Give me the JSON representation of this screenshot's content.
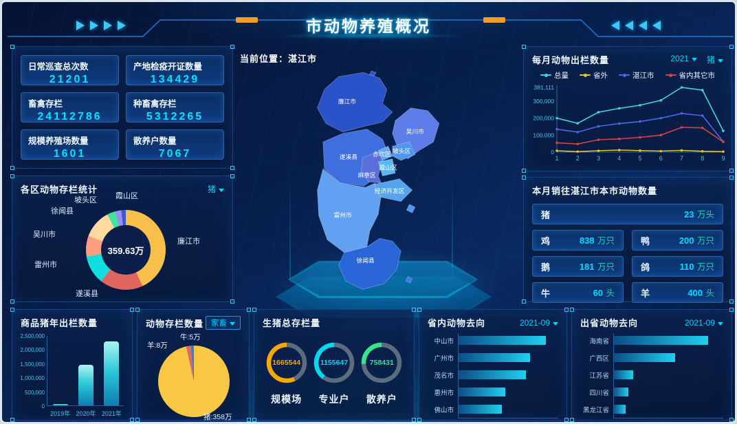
{
  "header": {
    "title": "市动物养殖概况"
  },
  "map": {
    "location": "当前位置：湛江市",
    "regions": [
      "廉江市",
      "吴川市",
      "遂溪县",
      "赤坎区",
      "坡头区",
      "霞山区",
      "麻章区",
      "经济开发区",
      "雷州市",
      "徐闻县"
    ]
  },
  "stats": {
    "cards": [
      {
        "label": "日常巡查总次数",
        "value": "21201"
      },
      {
        "label": "产地检疫开证数量",
        "value": "134429"
      },
      {
        "label": "畜禽存栏",
        "value": "24112786"
      },
      {
        "label": "种畜禽存栏",
        "value": "5312265"
      },
      {
        "label": "规模养殖场数量",
        "value": "1601"
      },
      {
        "label": "散养户数量",
        "value": "7067"
      }
    ]
  },
  "panels": {
    "district_donut": {
      "title": "各区动物存栏统计",
      "dropdown": "猪"
    },
    "monthly_line": {
      "title": "每月动物出栏数量",
      "year_dropdown": "2021",
      "animal_dropdown": "猪"
    },
    "sales": {
      "title": "本月销往湛江市本市动物数量"
    },
    "yearly_bar": {
      "title": "商品猪年出栏数量"
    },
    "stock_pie": {
      "title": "动物存栏数量",
      "dropdown": "家畜"
    },
    "gauges": {
      "title": "生猪总存栏量"
    },
    "inside": {
      "title": "省内动物去向",
      "dropdown": "2021-09"
    },
    "outside": {
      "title": "出省动物去向",
      "dropdown": "2021-09"
    }
  },
  "sales": {
    "rows": [
      {
        "animal": "猪",
        "value": "23",
        "unit": "万头"
      },
      {
        "animal": "鸡",
        "value": "838",
        "unit": "万只"
      },
      {
        "animal": "鸭",
        "value": "200",
        "unit": "万只"
      },
      {
        "animal": "鹅",
        "value": "181",
        "unit": "万只"
      },
      {
        "animal": "鸽",
        "value": "110",
        "unit": "万只"
      },
      {
        "animal": "牛",
        "value": "60",
        "unit": "头"
      },
      {
        "animal": "羊",
        "value": "400",
        "unit": "头"
      }
    ]
  },
  "chart_data": [
    {
      "id": "monthly_line",
      "type": "line",
      "title": "每月动物出栏数量",
      "x": [
        "1",
        "2",
        "3",
        "4",
        "5",
        "6",
        "7",
        "8",
        "9"
      ],
      "ylim": [
        0,
        381111
      ],
      "legend_position": "top",
      "grid": false,
      "y_ticks": [
        {
          "label": "0",
          "value": 0
        },
        {
          "label": "100,000",
          "value": 100000
        },
        {
          "label": "200,000",
          "value": 200000
        },
        {
          "label": "300,000",
          "value": 300000
        },
        {
          "label": "381,111",
          "value": 381111
        }
      ],
      "series": [
        {
          "name": "总量",
          "color": "#3fd4e4",
          "values": [
            200000,
            170000,
            235000,
            258000,
            276000,
            305000,
            381111,
            365000,
            125000
          ]
        },
        {
          "name": "省外",
          "color": "#e6c619",
          "values": [
            8000,
            3000,
            8000,
            12000,
            9000,
            6000,
            10000,
            5000,
            3000
          ]
        },
        {
          "name": "湛江市",
          "color": "#4a67e8",
          "values": [
            135000,
            118000,
            152000,
            168000,
            180000,
            200000,
            228000,
            215000,
            62000
          ]
        },
        {
          "name": "省内其它市",
          "color": "#d94040",
          "values": [
            55000,
            48000,
            73000,
            78000,
            87000,
            100000,
            146000,
            143000,
            60000
          ]
        }
      ]
    },
    {
      "id": "district_donut",
      "type": "pie",
      "donut": true,
      "title": "各区动物存栏统计",
      "center_label": "359.63万",
      "unit": "万",
      "slices": [
        {
          "name": "廉江市",
          "value": 155,
          "color": "#f8c04a"
        },
        {
          "name": "遂溪县",
          "value": 63,
          "color": "#e0655f"
        },
        {
          "name": "雷州市",
          "value": 42,
          "color": "#10dede"
        },
        {
          "name": "吴川市",
          "value": 30,
          "color": "#ff9f7f"
        },
        {
          "name": "徐闻县",
          "value": 42,
          "color": "#ffd9a0"
        },
        {
          "name": "坡头区",
          "value": 12,
          "color": "#3fe39b"
        },
        {
          "name": "霞山区",
          "value": 9,
          "color": "#9a8ff2"
        },
        {
          "name": "",
          "value": 6.63,
          "color": "#3c5ad0"
        }
      ]
    },
    {
      "id": "yearly_bar",
      "type": "bar",
      "title": "商品猪年出栏数量",
      "categories": [
        "2019年",
        "2020年",
        "2021年"
      ],
      "values": [
        50000,
        1450000,
        2270000
      ],
      "ylim": [
        0,
        2500000
      ],
      "y_ticks": [
        {
          "label": "0",
          "value": 0
        },
        {
          "label": "500,000",
          "value": 500000
        },
        {
          "label": "1,000,000",
          "value": 1000000
        },
        {
          "label": "1,500,000",
          "value": 1500000
        },
        {
          "label": "2,000,000",
          "value": 2000000
        },
        {
          "label": "2,500,000",
          "value": 2500000
        }
      ]
    },
    {
      "id": "stock_pie",
      "type": "pie",
      "title": "动物存栏数量",
      "slices": [
        {
          "name": "猪",
          "label": "猪:358万",
          "value": 358,
          "color": "#f8c845"
        },
        {
          "name": "羊",
          "label": "羊:8万",
          "value": 8,
          "color": "#e06a60"
        },
        {
          "name": "牛",
          "label": "牛:5万",
          "value": 5,
          "color": "#3a7bd5"
        }
      ]
    },
    {
      "id": "pig_gauges",
      "type": "gauge",
      "title": "生猪总存栏量",
      "items": [
        {
          "label": "规模场",
          "value": "1665544",
          "percent": 57,
          "color": "#f5a800"
        },
        {
          "label": "专业户",
          "value": "1155647",
          "percent": 40,
          "color": "#00d8f0"
        },
        {
          "label": "散养户",
          "value": "758431",
          "percent": 26,
          "color": "#3ae28c"
        }
      ]
    },
    {
      "id": "province_inside",
      "type": "hbar",
      "title": "省内动物去向",
      "categories": [
        "中山市",
        "广州市",
        "茂名市",
        "惠州市",
        "佛山市"
      ],
      "values": [
        22000,
        18000,
        17000,
        11800,
        11000
      ],
      "xlim": [
        0,
        25000
      ],
      "x_ticks": [
        {
          "label": "0",
          "value": 0
        },
        {
          "label": "5,000",
          "value": 5000
        },
        {
          "label": "10,000",
          "value": 10000
        },
        {
          "label": "15,000",
          "value": 15000
        },
        {
          "label": "20,000",
          "value": 20000
        },
        {
          "label": "25,000",
          "value": 25000
        }
      ]
    },
    {
      "id": "province_outside",
      "type": "hbar",
      "title": "出省动物去向",
      "categories": [
        "海南省",
        "广西区",
        "江苏省",
        "四川省",
        "黑龙江省"
      ],
      "values": [
        86000,
        56000,
        18000,
        14000,
        11000
      ],
      "xlim": [
        0,
        100000
      ],
      "x_ticks": [
        {
          "label": "0",
          "value": 0
        },
        {
          "label": "20,000",
          "value": 20000
        },
        {
          "label": "40,000",
          "value": 40000
        },
        {
          "label": "60,000",
          "value": 60000
        },
        {
          "label": "80,000",
          "value": 80000
        },
        {
          "label": "100,000",
          "value": 100000
        }
      ]
    }
  ]
}
